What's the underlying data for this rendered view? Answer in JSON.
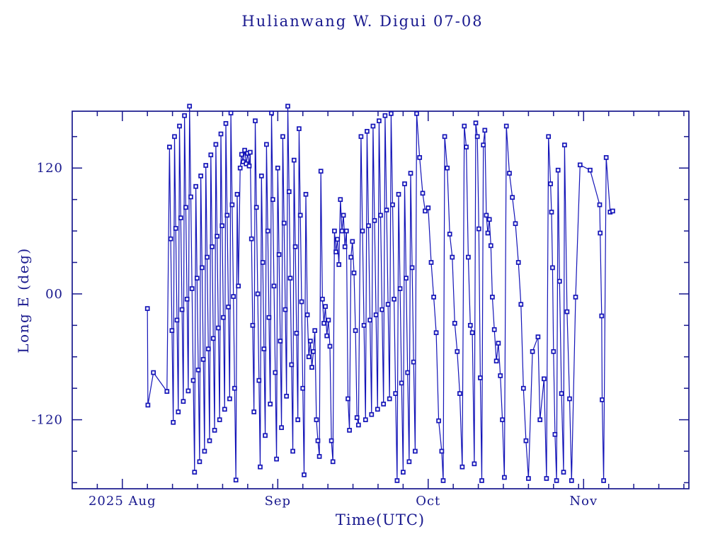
{
  "chart_data": {
    "type": "line",
    "title": "Hulianwang W. Digui 07-08",
    "xlabel": "Time(UTC)",
    "ylabel": "Long E (deg)",
    "legend": "none",
    "grid": false,
    "marker": "open-square",
    "colors": {
      "frame": "#18188e",
      "text": "#18188e",
      "data": "#1414b8",
      "background": "#ffffff"
    },
    "x_unit": "days since 2025 Aug 1 00:00 UTC",
    "xlim": [
      -10,
      113
    ],
    "ylim": [
      -185.8,
      174.2
    ],
    "x_axis": {
      "major_ticks": [
        {
          "t": 0,
          "label": "2025 Aug"
        },
        {
          "t": 31,
          "label": "Sep"
        },
        {
          "t": 61,
          "label": "Oct"
        },
        {
          "t": 92,
          "label": "Nov"
        }
      ],
      "minor_ticks": [
        -5,
        5,
        10,
        15,
        20,
        25,
        30,
        36,
        41,
        46,
        51,
        56,
        66,
        71,
        76,
        81,
        86,
        91,
        97,
        102,
        107,
        112
      ]
    },
    "y_axis": {
      "major_ticks": [
        {
          "v": 120,
          "label": "120"
        },
        {
          "v": 0,
          "label": "00"
        },
        {
          "v": -120,
          "label": "-120"
        }
      ],
      "minor_ticks": [
        150,
        90,
        60,
        30,
        -30,
        -60,
        -90,
        -150,
        -180
      ]
    },
    "points": [
      [
        5.0,
        -14
      ],
      [
        5.1,
        -106
      ],
      [
        6.2,
        -75
      ],
      [
        8.9,
        -93
      ],
      [
        9.4,
        140
      ],
      [
        9.65,
        52.5
      ],
      [
        9.9,
        -35
      ],
      [
        10.15,
        -122.5
      ],
      [
        10.4,
        150
      ],
      [
        10.65,
        62.5
      ],
      [
        10.9,
        -25
      ],
      [
        11.15,
        -112.5
      ],
      [
        11.4,
        160
      ],
      [
        11.65,
        72.5
      ],
      [
        11.9,
        -15
      ],
      [
        12.15,
        -102.5
      ],
      [
        12.4,
        170
      ],
      [
        12.65,
        82.5
      ],
      [
        12.9,
        -5
      ],
      [
        13.15,
        -92.5
      ],
      [
        13.4,
        179
      ],
      [
        13.65,
        92.5
      ],
      [
        13.9,
        5
      ],
      [
        14.15,
        -82.5
      ],
      [
        14.4,
        -170
      ],
      [
        14.65,
        102.5
      ],
      [
        14.9,
        15
      ],
      [
        15.15,
        -72.5
      ],
      [
        15.4,
        -160
      ],
      [
        15.65,
        112.5
      ],
      [
        15.9,
        25
      ],
      [
        16.15,
        -62.5
      ],
      [
        16.4,
        -150
      ],
      [
        16.65,
        122.5
      ],
      [
        16.9,
        35
      ],
      [
        17.15,
        -52.5
      ],
      [
        17.4,
        -140
      ],
      [
        17.65,
        132.5
      ],
      [
        17.9,
        45
      ],
      [
        18.15,
        -42.5
      ],
      [
        18.4,
        -130
      ],
      [
        18.65,
        142.5
      ],
      [
        18.9,
        55
      ],
      [
        19.15,
        -32.5
      ],
      [
        19.4,
        -120
      ],
      [
        19.65,
        152.5
      ],
      [
        19.9,
        65
      ],
      [
        20.15,
        -22.5
      ],
      [
        20.4,
        -110
      ],
      [
        20.65,
        162.5
      ],
      [
        20.9,
        75
      ],
      [
        21.15,
        -12.5
      ],
      [
        21.4,
        -100
      ],
      [
        21.65,
        172.5
      ],
      [
        21.9,
        85
      ],
      [
        22.15,
        -2.5
      ],
      [
        22.4,
        -90
      ],
      [
        22.65,
        -177.5
      ],
      [
        22.9,
        95
      ],
      [
        23.15,
        7.5
      ],
      [
        23.5,
        120
      ],
      [
        23.8,
        133
      ],
      [
        24.1,
        126
      ],
      [
        24.4,
        137
      ],
      [
        24.7,
        124
      ],
      [
        25.0,
        134
      ],
      [
        25.3,
        122
      ],
      [
        25.5,
        135
      ],
      [
        25.75,
        52.5
      ],
      [
        26.0,
        -30
      ],
      [
        26.25,
        -112.5
      ],
      [
        26.5,
        165
      ],
      [
        26.75,
        82.5
      ],
      [
        27.0,
        0
      ],
      [
        27.25,
        -82.5
      ],
      [
        27.5,
        -165
      ],
      [
        27.75,
        112.5
      ],
      [
        28.0,
        30
      ],
      [
        28.25,
        -52.5
      ],
      [
        28.5,
        -135
      ],
      [
        28.75,
        142.5
      ],
      [
        29.0,
        60
      ],
      [
        29.25,
        -22.5
      ],
      [
        29.5,
        -105
      ],
      [
        29.75,
        172.5
      ],
      [
        30.0,
        90
      ],
      [
        30.25,
        7.5
      ],
      [
        30.5,
        -75
      ],
      [
        30.75,
        -157.5
      ],
      [
        31.0,
        120
      ],
      [
        31.25,
        37.5
      ],
      [
        31.5,
        -45
      ],
      [
        31.75,
        -127.5
      ],
      [
        32.0,
        150
      ],
      [
        32.25,
        67.5
      ],
      [
        32.5,
        -15
      ],
      [
        32.75,
        -97.5
      ],
      [
        33.0,
        179
      ],
      [
        33.25,
        97.5
      ],
      [
        33.5,
        15
      ],
      [
        33.75,
        -67.5
      ],
      [
        34.0,
        -150
      ],
      [
        34.25,
        127.5
      ],
      [
        34.5,
        45
      ],
      [
        34.75,
        -37.5
      ],
      [
        35.0,
        -120
      ],
      [
        35.25,
        157.5
      ],
      [
        35.5,
        75
      ],
      [
        35.75,
        -7.5
      ],
      [
        36.0,
        -90
      ],
      [
        36.25,
        -172.5
      ],
      [
        36.6,
        95
      ],
      [
        36.9,
        -20
      ],
      [
        37.2,
        -60
      ],
      [
        37.5,
        -45
      ],
      [
        37.8,
        -70
      ],
      [
        38.1,
        -55
      ],
      [
        38.4,
        -35
      ],
      [
        38.7,
        -120
      ],
      [
        39.0,
        -140
      ],
      [
        39.3,
        -155
      ],
      [
        39.6,
        117
      ],
      [
        39.9,
        -5
      ],
      [
        40.2,
        -28
      ],
      [
        40.5,
        -12
      ],
      [
        40.8,
        -40
      ],
      [
        41.1,
        -25
      ],
      [
        41.4,
        -50
      ],
      [
        41.7,
        -140
      ],
      [
        42.0,
        -160
      ],
      [
        42.3,
        60
      ],
      [
        42.6,
        40
      ],
      [
        42.9,
        52
      ],
      [
        43.2,
        28
      ],
      [
        43.5,
        90
      ],
      [
        43.8,
        60
      ],
      [
        44.1,
        75
      ],
      [
        44.4,
        45
      ],
      [
        44.7,
        60
      ],
      [
        45.0,
        -100
      ],
      [
        45.3,
        -130
      ],
      [
        45.6,
        35
      ],
      [
        45.9,
        50
      ],
      [
        46.2,
        20
      ],
      [
        46.5,
        -35
      ],
      [
        46.8,
        -118
      ],
      [
        47.1,
        -125
      ],
      [
        47.6,
        150
      ],
      [
        47.9,
        60
      ],
      [
        48.2,
        -30
      ],
      [
        48.5,
        -120
      ],
      [
        48.8,
        155
      ],
      [
        49.1,
        65
      ],
      [
        49.4,
        -25
      ],
      [
        49.7,
        -115
      ],
      [
        50.0,
        160
      ],
      [
        50.3,
        70
      ],
      [
        50.6,
        -20
      ],
      [
        50.9,
        -110
      ],
      [
        51.2,
        165
      ],
      [
        51.5,
        75
      ],
      [
        51.8,
        -15
      ],
      [
        52.1,
        -105
      ],
      [
        52.4,
        170
      ],
      [
        52.7,
        80
      ],
      [
        53.0,
        -10
      ],
      [
        53.3,
        -100
      ],
      [
        53.6,
        172
      ],
      [
        53.9,
        85
      ],
      [
        54.2,
        -5
      ],
      [
        54.5,
        -95
      ],
      [
        54.8,
        -178
      ],
      [
        55.1,
        95
      ],
      [
        55.4,
        5
      ],
      [
        55.7,
        -85
      ],
      [
        56.0,
        -170
      ],
      [
        56.3,
        105
      ],
      [
        56.6,
        15
      ],
      [
        56.9,
        -75
      ],
      [
        57.2,
        -160
      ],
      [
        57.5,
        115
      ],
      [
        57.8,
        25
      ],
      [
        58.1,
        -65
      ],
      [
        58.4,
        -150
      ],
      [
        58.7,
        172
      ],
      [
        59.3,
        130
      ],
      [
        59.9,
        96
      ],
      [
        60.4,
        79
      ],
      [
        61.0,
        82
      ],
      [
        61.6,
        30
      ],
      [
        62.1,
        -3
      ],
      [
        62.6,
        -37
      ],
      [
        63.1,
        -121
      ],
      [
        63.7,
        -150
      ],
      [
        64.0,
        -178
      ],
      [
        64.3,
        150
      ],
      [
        64.8,
        120
      ],
      [
        65.3,
        57
      ],
      [
        65.8,
        35
      ],
      [
        66.3,
        -28
      ],
      [
        66.8,
        -55
      ],
      [
        67.3,
        -95
      ],
      [
        67.8,
        -165
      ],
      [
        68.2,
        160
      ],
      [
        68.6,
        140
      ],
      [
        69.0,
        35
      ],
      [
        69.4,
        -30
      ],
      [
        69.8,
        -37
      ],
      [
        70.2,
        -162
      ],
      [
        70.5,
        163
      ],
      [
        70.8,
        150
      ],
      [
        71.1,
        62
      ],
      [
        71.4,
        -80
      ],
      [
        71.7,
        -178
      ],
      [
        72.0,
        142
      ],
      [
        72.3,
        156
      ],
      [
        72.6,
        75
      ],
      [
        72.9,
        58
      ],
      [
        73.2,
        71
      ],
      [
        73.5,
        46
      ],
      [
        73.8,
        -3
      ],
      [
        74.2,
        -34
      ],
      [
        74.6,
        -64
      ],
      [
        75.0,
        -47
      ],
      [
        75.4,
        -78
      ],
      [
        75.8,
        -120
      ],
      [
        76.2,
        -175
      ],
      [
        76.6,
        160
      ],
      [
        77.2,
        115
      ],
      [
        77.8,
        92
      ],
      [
        78.4,
        67
      ],
      [
        79.0,
        30
      ],
      [
        79.5,
        -10
      ],
      [
        80.0,
        -90
      ],
      [
        80.5,
        -140
      ],
      [
        81.0,
        -176
      ],
      [
        81.8,
        -55
      ],
      [
        82.9,
        -41
      ],
      [
        83.3,
        -120
      ],
      [
        84.1,
        -81
      ],
      [
        84.6,
        -176
      ],
      [
        85.0,
        150
      ],
      [
        85.4,
        105
      ],
      [
        85.6,
        78
      ],
      [
        85.8,
        25
      ],
      [
        86.0,
        -55
      ],
      [
        86.3,
        -134
      ],
      [
        86.6,
        -178
      ],
      [
        86.9,
        118
      ],
      [
        87.2,
        12
      ],
      [
        87.6,
        -95
      ],
      [
        88.0,
        -170
      ],
      [
        88.2,
        142
      ],
      [
        88.7,
        -17
      ],
      [
        89.2,
        -100
      ],
      [
        89.6,
        -178
      ],
      [
        90.4,
        -3
      ],
      [
        91.3,
        123
      ],
      [
        93.3,
        118
      ],
      [
        95.2,
        85
      ],
      [
        95.3,
        58
      ],
      [
        95.6,
        -21
      ],
      [
        95.7,
        -101
      ],
      [
        96.0,
        -178
      ],
      [
        96.5,
        130
      ],
      [
        97.3,
        78
      ],
      [
        97.8,
        79
      ]
    ]
  }
}
